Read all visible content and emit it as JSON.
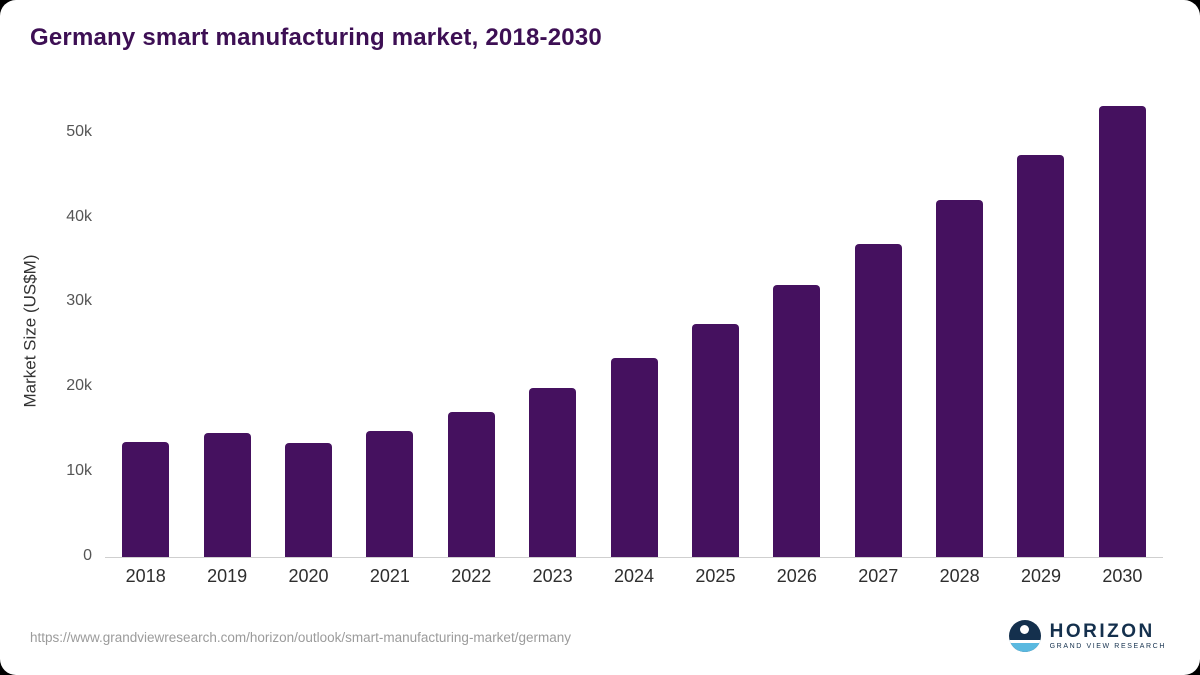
{
  "page": {
    "source_url": "https://www.grandviewresearch.com/horizon/outlook/smart-manufacturing-market/germany"
  },
  "logo": {
    "name": "HORIZON",
    "subtitle": "GRAND VIEW RESEARCH"
  },
  "colors": {
    "bar": "#45115f",
    "title": "#3d0f54",
    "axis_text": "#555555",
    "axis_line": "#cfcfcf",
    "logo_navy": "#14304d",
    "logo_blue": "#5ab9e0"
  },
  "chart_data": {
    "type": "bar",
    "title": "Germany smart manufacturing market, 2018-2030",
    "xlabel": "",
    "ylabel": "Market Size (US$M)",
    "categories": [
      "2018",
      "2019",
      "2020",
      "2021",
      "2022",
      "2023",
      "2024",
      "2025",
      "2026",
      "2027",
      "2028",
      "2029",
      "2030"
    ],
    "values": [
      13500,
      14600,
      13400,
      14900,
      17100,
      19900,
      23400,
      27400,
      32000,
      36900,
      42100,
      47400,
      53100
    ],
    "ylim": [
      0,
      53500
    ],
    "yticks": [
      {
        "value": 0,
        "label": "0"
      },
      {
        "value": 10000,
        "label": "10k"
      },
      {
        "value": 20000,
        "label": "20k"
      },
      {
        "value": 30000,
        "label": "30k"
      },
      {
        "value": 40000,
        "label": "40k"
      },
      {
        "value": 50000,
        "label": "50k"
      }
    ],
    "grid": false,
    "legend": false
  }
}
